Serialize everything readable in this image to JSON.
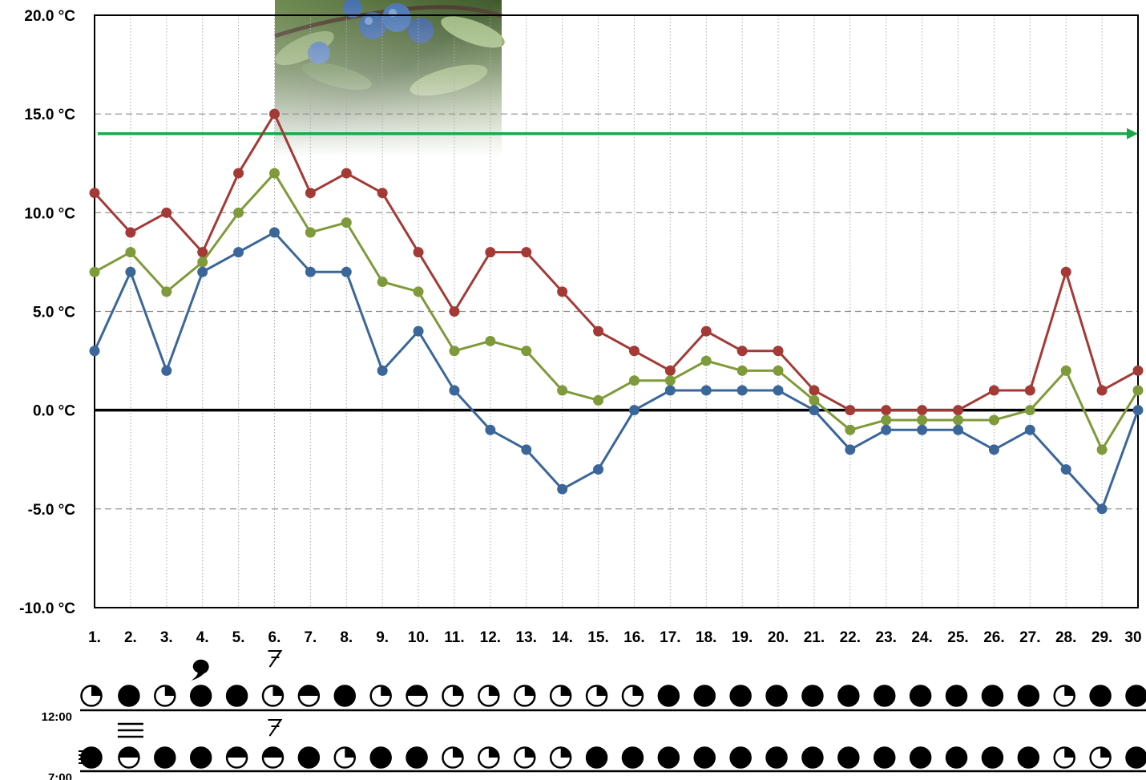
{
  "chart_data": {
    "type": "line",
    "title": "",
    "xlabel": "",
    "ylabel": "",
    "categories": [
      "1.",
      "2.",
      "3.",
      "4.",
      "5.",
      "6.",
      "7.",
      "8.",
      "9.",
      "10.",
      "11.",
      "12.",
      "13.",
      "14.",
      "15.",
      "16.",
      "17.",
      "18.",
      "19.",
      "20.",
      "21.",
      "22.",
      "23.",
      "24.",
      "25.",
      "26.",
      "27.",
      "28.",
      "29.",
      "30"
    ],
    "y_ticks": [
      "-10.0 °C",
      "-5.0 °C",
      "0.0 °C",
      "5.0 °C",
      "10.0 °C",
      "15.0 °C",
      "20.0 °C"
    ],
    "ylim": [
      -10,
      20
    ],
    "grid": true,
    "reference_line": {
      "value": 14,
      "color": "#1aa84a"
    },
    "zero_line": {
      "value": 0,
      "color": "#000000"
    },
    "series": [
      {
        "color": "#a33a36",
        "values": [
          11,
          9,
          10,
          8,
          12,
          15,
          11,
          12,
          11,
          8,
          5,
          8,
          8,
          6,
          4,
          3,
          2,
          4,
          3,
          3,
          1,
          0,
          0,
          0,
          0,
          1,
          1,
          7,
          1,
          2
        ]
      },
      {
        "color": "#7f9a3a",
        "values": [
          7,
          8,
          6,
          7.5,
          10,
          12,
          9,
          9.5,
          6.5,
          6,
          3,
          3.5,
          3,
          1,
          0.5,
          1.5,
          1.5,
          2.5,
          2,
          2,
          0.5,
          -1,
          -0.5,
          -0.5,
          -0.5,
          -0.5,
          0,
          2,
          -2,
          1
        ]
      },
      {
        "color": "#3b6699",
        "values": [
          3,
          7,
          2,
          7,
          8,
          9,
          7,
          7,
          2,
          4,
          1,
          -1,
          -2,
          -4,
          -3,
          0,
          1,
          1,
          1,
          1,
          0,
          -2,
          -1,
          -1,
          -1,
          -2,
          -1,
          -3,
          -5,
          0
        ]
      }
    ]
  },
  "weather": {
    "rows": [
      {
        "label": "12:00",
        "cloud": [
          1,
          4,
          1,
          4,
          4,
          1,
          2,
          4,
          1,
          2,
          1,
          1,
          1,
          1,
          1,
          1,
          4,
          4,
          4,
          4,
          4,
          4,
          4,
          4,
          4,
          4,
          4,
          1,
          4,
          4
        ]
      },
      {
        "label": "7:00",
        "cloud": [
          4,
          2,
          4,
          4,
          2,
          2,
          4,
          1,
          4,
          4,
          1,
          1,
          1,
          1,
          4,
          4,
          4,
          4,
          4,
          4,
          4,
          4,
          4,
          4,
          4,
          4,
          4,
          1,
          1,
          4
        ]
      }
    ],
    "symbols": [
      {
        "day": 4,
        "row": 0,
        "icon": "rain-drop-icon"
      },
      {
        "day": 6,
        "row": 0,
        "icon": "wind-flag-icon"
      },
      {
        "day": 2,
        "row": 1,
        "icon": "fog-icon"
      },
      {
        "day": 6,
        "row": 1,
        "icon": "wind-flag-icon"
      },
      {
        "day": 1,
        "row": 1,
        "icon": "mist-icon"
      }
    ]
  }
}
